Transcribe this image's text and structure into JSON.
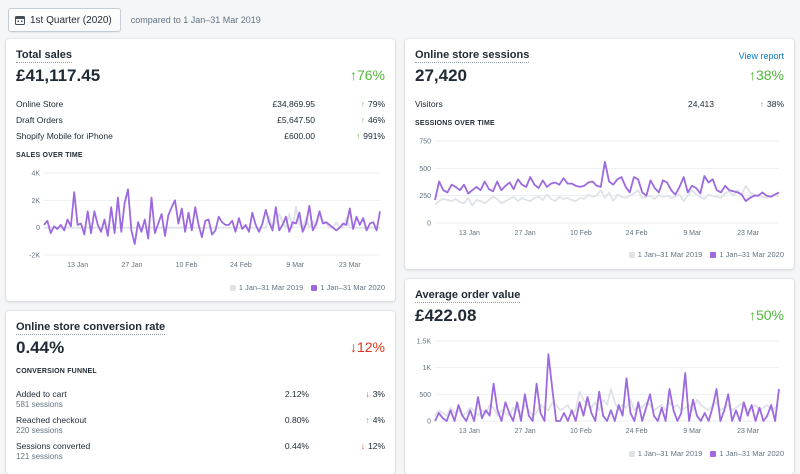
{
  "header": {
    "date_button": "1st Quarter (2020)",
    "compare_text": "compared to 1 Jan–31 Mar 2019"
  },
  "colors": {
    "current": "#9c6ade",
    "previous": "#dfe3e8",
    "up": "#50b83c",
    "down": "#de3618",
    "link": "#007ace"
  },
  "legend": {
    "previous": "1 Jan–31 Mar 2019",
    "current": "1 Jan–31 Mar 2020"
  },
  "total_sales": {
    "title": "Total sales",
    "value": "£41,117.45",
    "change": "76%",
    "rows": [
      {
        "label": "Online Store",
        "value": "£34,869.95",
        "change": "79%"
      },
      {
        "label": "Draft Orders",
        "value": "£5,647.50",
        "change": "46%"
      },
      {
        "label": "Shopify Mobile for iPhone",
        "value": "£600.00",
        "change": "991%"
      }
    ],
    "chart_title": "SALES OVER TIME"
  },
  "sessions": {
    "title": "Online store sessions",
    "link": "View report",
    "value": "27,420",
    "change": "38%",
    "row": {
      "label": "Visitors",
      "value": "24,413",
      "change": "38%"
    },
    "chart_title": "SESSIONS OVER TIME"
  },
  "conversion": {
    "title": "Online store conversion rate",
    "value": "0.44%",
    "change": "12%",
    "funnel_title": "CONVERSION FUNNEL",
    "steps": [
      {
        "label": "Added to cart",
        "sessions": "581 sessions",
        "value": "2.12%",
        "change": "3%",
        "dir": "down"
      },
      {
        "label": "Reached checkout",
        "sessions": "220 sessions",
        "value": "0.80%",
        "change": "4%",
        "dir": "up"
      },
      {
        "label": "Sessions converted",
        "sessions": "121 sessions",
        "value": "0.44%",
        "change": "12%",
        "dir": "down"
      }
    ]
  },
  "aov": {
    "title": "Average order value",
    "value": "£422.08",
    "change": "50%"
  },
  "chart_data": [
    {
      "type": "line",
      "xlabels": [
        "13 Jan",
        "27 Jan",
        "10 Feb",
        "24 Feb",
        "9 Mar",
        "23 Mar"
      ],
      "yticks": [
        "4K",
        "2K",
        "0",
        "-2K"
      ],
      "ylim": [
        -2000,
        4000
      ],
      "series": [
        {
          "name": "1 Jan–31 Mar 2020",
          "values": [
            200,
            500,
            -400,
            100,
            -100,
            200,
            -200,
            600,
            100,
            2600,
            200,
            300,
            -500,
            1200,
            -400,
            1200,
            200,
            -300,
            600,
            -600,
            1500,
            -400,
            2200,
            -300,
            1800,
            2800,
            -200,
            -1200,
            400,
            -300,
            600,
            -800,
            2200,
            -400,
            300,
            1000,
            -600,
            900,
            1500,
            2000,
            300,
            1400,
            -300,
            1100,
            -200,
            1500,
            200,
            -700,
            500,
            600,
            -500,
            -200,
            800,
            400,
            200,
            200,
            500,
            -300,
            700,
            -100,
            200,
            -300,
            1100,
            200,
            -300,
            300,
            1300,
            400,
            -200,
            1500,
            -200,
            200,
            800,
            -300,
            400,
            300,
            1100,
            -300,
            300,
            1600,
            -200,
            300,
            1200,
            300,
            400,
            200,
            0,
            -200,
            0,
            300,
            200,
            1400,
            -100,
            800,
            200,
            700,
            -200,
            300,
            400,
            -200,
            1200
          ]
        },
        {
          "name": "1 Jan–31 Mar 2019",
          "values": [
            0,
            0,
            0,
            0,
            0,
            0,
            0,
            0,
            0,
            0,
            0,
            0,
            0,
            0,
            0,
            0,
            0,
            0,
            0,
            0,
            0,
            0,
            0,
            0,
            0,
            0,
            0,
            0,
            0,
            0,
            0,
            0,
            0,
            0,
            0,
            0,
            0,
            0,
            0,
            0,
            0,
            0,
            0,
            0,
            0,
            0,
            0,
            0,
            0,
            0,
            0,
            0,
            0,
            0,
            0,
            0,
            0,
            0,
            0,
            0,
            0,
            0,
            0,
            0,
            0,
            0,
            0,
            800,
            0,
            400,
            1000,
            400,
            0,
            1000,
            0,
            1500,
            200,
            0,
            700,
            0,
            500,
            0,
            1000,
            500,
            300,
            0,
            0,
            400,
            0,
            0,
            700,
            0,
            0,
            0,
            0,
            0,
            0,
            0,
            0,
            0,
            0
          ]
        }
      ]
    },
    {
      "type": "line",
      "xlabels": [
        "13 Jan",
        "27 Jan",
        "10 Feb",
        "24 Feb",
        "9 Mar",
        "23 Mar"
      ],
      "yticks": [
        "750",
        "500",
        "250",
        "0"
      ],
      "ylim": [
        0,
        750
      ],
      "series": [
        {
          "name": "1 Jan–31 Mar 2020",
          "values": [
            210,
            380,
            300,
            280,
            350,
            330,
            300,
            350,
            270,
            300,
            330,
            300,
            380,
            310,
            290,
            380,
            300,
            340,
            370,
            310,
            400,
            350,
            330,
            420,
            350,
            320,
            390,
            330,
            360,
            370,
            350,
            410,
            360,
            360,
            340,
            330,
            340,
            370,
            380,
            340,
            330,
            560,
            380,
            350,
            400,
            420,
            330,
            280,
            420,
            400,
            280,
            250,
            390,
            320,
            280,
            390,
            370,
            300,
            260,
            330,
            420,
            280,
            340,
            320,
            270,
            430,
            370,
            400,
            300,
            280,
            340,
            300,
            290,
            280,
            260,
            200,
            230,
            250,
            250,
            280,
            250,
            240,
            260,
            280
          ]
        },
        {
          "name": "1 Jan–31 Mar 2019",
          "values": [
            170,
            200,
            220,
            210,
            200,
            220,
            190,
            180,
            230,
            160,
            210,
            200,
            180,
            210,
            240,
            220,
            180,
            200,
            220,
            240,
            200,
            230,
            210,
            200,
            230,
            240,
            210,
            260,
            220,
            200,
            240,
            220,
            230,
            210,
            200,
            230,
            220,
            260,
            240,
            250,
            300,
            230,
            280,
            200,
            260,
            240,
            230,
            250,
            270,
            300,
            230,
            240,
            250,
            220,
            260,
            240,
            250,
            230,
            240,
            260,
            200,
            250,
            300,
            260,
            240,
            220,
            260,
            250,
            240,
            230,
            270,
            290,
            250,
            300,
            260,
            340,
            280,
            260,
            250,
            240,
            230,
            250,
            260,
            240
          ]
        }
      ]
    },
    {
      "type": "line",
      "xlabels": [
        "13 Jan",
        "27 Jan",
        "10 Feb",
        "24 Feb",
        "9 Mar",
        "23 Mar"
      ],
      "yticks": [
        "1.5K",
        "1K",
        "500",
        "0"
      ],
      "ylim": [
        0,
        1500
      ],
      "series": [
        {
          "name": "1 Jan–31 Mar 2020",
          "values": [
            0,
            150,
            50,
            0,
            200,
            0,
            300,
            100,
            0,
            200,
            0,
            450,
            50,
            200,
            100,
            700,
            200,
            0,
            350,
            150,
            0,
            350,
            0,
            500,
            100,
            0,
            700,
            150,
            0,
            1250,
            600,
            0,
            0,
            150,
            0,
            200,
            0,
            350,
            100,
            450,
            150,
            0,
            550,
            100,
            0,
            200,
            0,
            300,
            100,
            800,
            150,
            0,
            350,
            0,
            250,
            500,
            100,
            0,
            250,
            0,
            600,
            200,
            0,
            150,
            900,
            0,
            400,
            100,
            0,
            150,
            0,
            250,
            600,
            0,
            200,
            500,
            0,
            200,
            0,
            350,
            100,
            300,
            0,
            250,
            0,
            100,
            300,
            0,
            600
          ]
        },
        {
          "name": "1 Jan–31 Mar 2019",
          "values": [
            100,
            200,
            150,
            100,
            250,
            150,
            200,
            100,
            150,
            250,
            200,
            100,
            200,
            150,
            300,
            250,
            100,
            200,
            150,
            100,
            250,
            200,
            150,
            300,
            200,
            100,
            150,
            300,
            250,
            200,
            350,
            300,
            200,
            250,
            300,
            150,
            200,
            550,
            400,
            300,
            250,
            350,
            200,
            400,
            300,
            600,
            350,
            200,
            300,
            250,
            400,
            200,
            300,
            250,
            350,
            300,
            200,
            250,
            300,
            200,
            350,
            250,
            300,
            200,
            250,
            300,
            200,
            400,
            300,
            250,
            200,
            300,
            350,
            200,
            250,
            300,
            200,
            250,
            300,
            350,
            200,
            250,
            300,
            200,
            250,
            300,
            200,
            250,
            300
          ]
        }
      ]
    }
  ]
}
